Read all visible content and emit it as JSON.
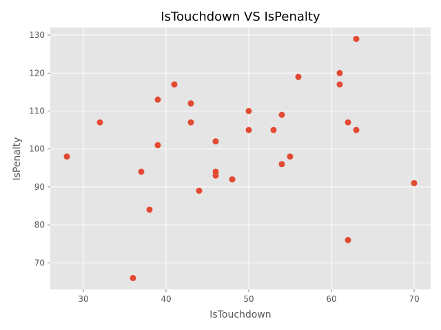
{
  "chart_data": {
    "type": "scatter",
    "title": "IsTouchdown VS IsPenalty",
    "xlabel": "IsTouchdown",
    "ylabel": "IsPenalty",
    "xlim": [
      26,
      72
    ],
    "ylim": [
      63,
      132
    ],
    "x_ticks": [
      30,
      40,
      50,
      60,
      70
    ],
    "y_ticks": [
      70,
      80,
      90,
      100,
      110,
      120,
      130
    ],
    "grid": true,
    "colors": {
      "plot_background": "#E5E5E5",
      "grid": "#FFFFFF",
      "point": "#E24A33",
      "text": "#555555",
      "title": "#000000"
    },
    "points": [
      {
        "x": 28,
        "y": 98
      },
      {
        "x": 32,
        "y": 107
      },
      {
        "x": 36,
        "y": 66
      },
      {
        "x": 37,
        "y": 94
      },
      {
        "x": 38,
        "y": 84
      },
      {
        "x": 39,
        "y": 113
      },
      {
        "x": 39,
        "y": 101
      },
      {
        "x": 41,
        "y": 117
      },
      {
        "x": 43,
        "y": 112
      },
      {
        "x": 43,
        "y": 107
      },
      {
        "x": 44,
        "y": 89
      },
      {
        "x": 46,
        "y": 102
      },
      {
        "x": 46,
        "y": 94
      },
      {
        "x": 46,
        "y": 93
      },
      {
        "x": 48,
        "y": 92
      },
      {
        "x": 48,
        "y": 92
      },
      {
        "x": 50,
        "y": 110
      },
      {
        "x": 50,
        "y": 105
      },
      {
        "x": 53,
        "y": 105
      },
      {
        "x": 54,
        "y": 109
      },
      {
        "x": 54,
        "y": 96
      },
      {
        "x": 55,
        "y": 98
      },
      {
        "x": 56,
        "y": 119
      },
      {
        "x": 61,
        "y": 120
      },
      {
        "x": 61,
        "y": 117
      },
      {
        "x": 62,
        "y": 107
      },
      {
        "x": 62,
        "y": 76
      },
      {
        "x": 63,
        "y": 129
      },
      {
        "x": 63,
        "y": 105
      },
      {
        "x": 70,
        "y": 91
      }
    ]
  }
}
